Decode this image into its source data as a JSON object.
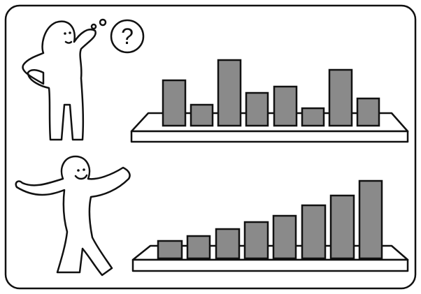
{
  "thought_bubble": {
    "text": "?"
  }
}
